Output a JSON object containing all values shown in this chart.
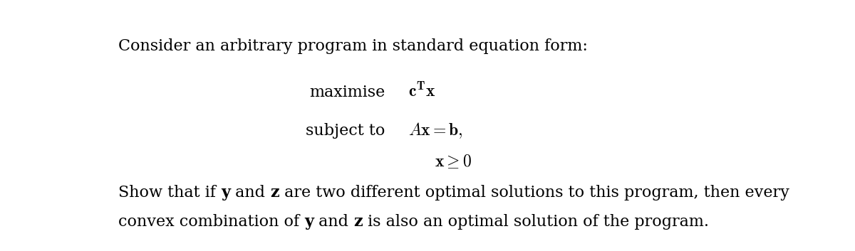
{
  "background_color": "#ffffff",
  "fig_width": 12.0,
  "fig_height": 3.53,
  "dpi": 100,
  "text_color": "#000000",
  "line1": "Consider an arbitrary program in standard equation form:",
  "bottom_line1_prefix": "Show that if ",
  "bottom_line1_y": "y",
  "bottom_line1_mid1": " and ",
  "bottom_line1_z": "z",
  "bottom_line1_suffix": " are two different optimal solutions to this program, then every",
  "bottom_line2_prefix": "convex combination of ",
  "bottom_line2_y": "y",
  "bottom_line2_mid1": " and ",
  "bottom_line2_z": "z",
  "bottom_line2_suffix": " is also an optimal solution of the program.",
  "fontsize": 16.0,
  "math_fontsize": 17.0
}
